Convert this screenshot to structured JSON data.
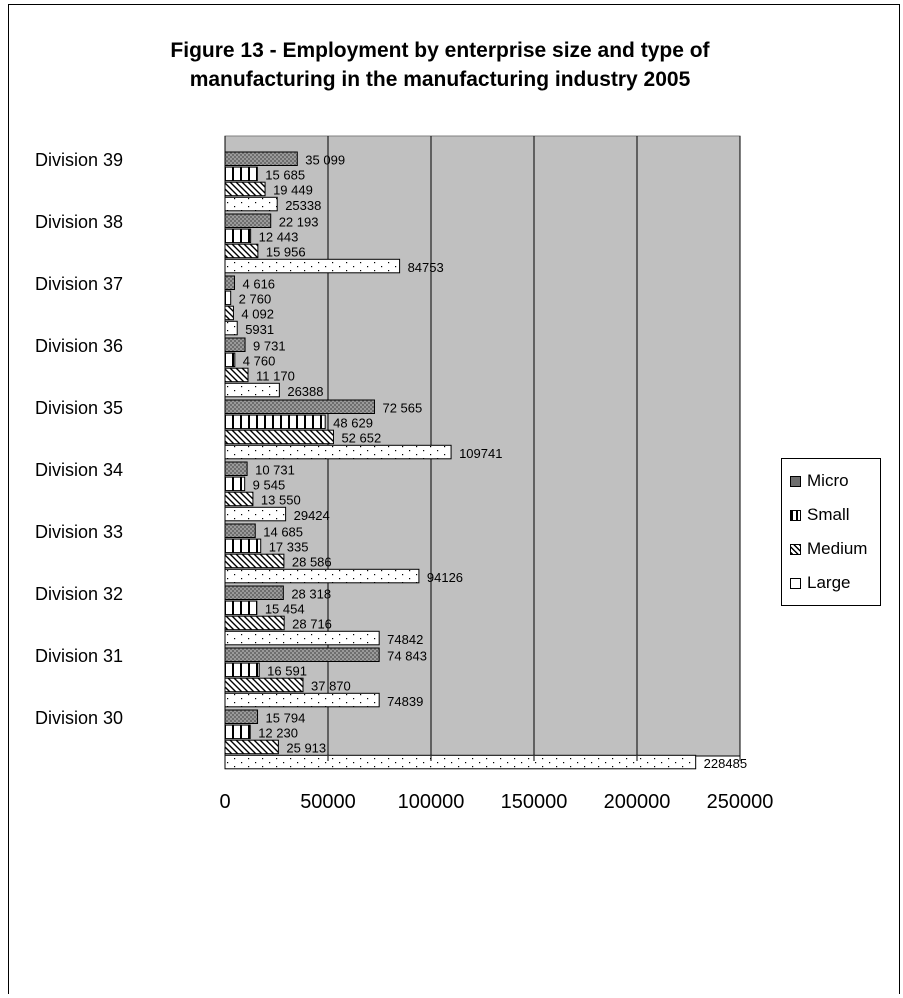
{
  "chart_data": {
    "type": "bar",
    "orientation": "horizontal",
    "title": "Figure 13 - Employment by enterprise size and type of manufacturing in the manufacturing industry 2005",
    "categories": [
      "Division 39",
      "Division 38",
      "Division 37",
      "Division 36",
      "Division 35",
      "Division 34",
      "Division 33",
      "Division 32",
      "Division 31",
      "Division 30"
    ],
    "series": [
      {
        "name": "Micro",
        "values": [
          35099,
          22193,
          4616,
          9731,
          72565,
          10731,
          14685,
          28318,
          74843,
          15794
        ],
        "labels": [
          "35 099",
          "22 193",
          "4 616",
          "9 731",
          "72 565",
          "10 731",
          "14 685",
          "28 318",
          "74 843",
          "15 794"
        ]
      },
      {
        "name": "Small",
        "values": [
          15685,
          12443,
          2760,
          4760,
          48629,
          9545,
          17335,
          15454,
          16591,
          12230
        ],
        "labels": [
          "15 685",
          "12 443",
          "2 760",
          "4 760",
          "48 629",
          "9 545",
          "17 335",
          "15 454",
          "16 591",
          "12 230"
        ]
      },
      {
        "name": "Medium",
        "values": [
          19449,
          15956,
          4092,
          11170,
          52652,
          13550,
          28586,
          28716,
          37870,
          25913
        ],
        "labels": [
          "19 449",
          "15 956",
          "4 092",
          "11 170",
          "52 652",
          "13 550",
          "28 586",
          "28 716",
          "37 870",
          "25 913"
        ]
      },
      {
        "name": "Large",
        "values": [
          25338,
          84753,
          5931,
          26388,
          109741,
          29424,
          94126,
          74842,
          74839,
          228485
        ],
        "labels": [
          "25338",
          "84753",
          "5931",
          "26388",
          "109741",
          "29424",
          "94126",
          "74842",
          "74839",
          "228485"
        ]
      }
    ],
    "xlim": [
      0,
      250000
    ],
    "xticks": [
      "0",
      "50000",
      "100000",
      "150000",
      "200000",
      "250000"
    ],
    "xtick_values": [
      0,
      50000,
      100000,
      150000,
      200000,
      250000
    ],
    "grid": true,
    "legend_position": "right",
    "plot_background": "#c0c0c0",
    "series_patterns": [
      "crosshatch-dark",
      "vertical-stripes",
      "diagonal-stripes",
      "dots"
    ]
  }
}
